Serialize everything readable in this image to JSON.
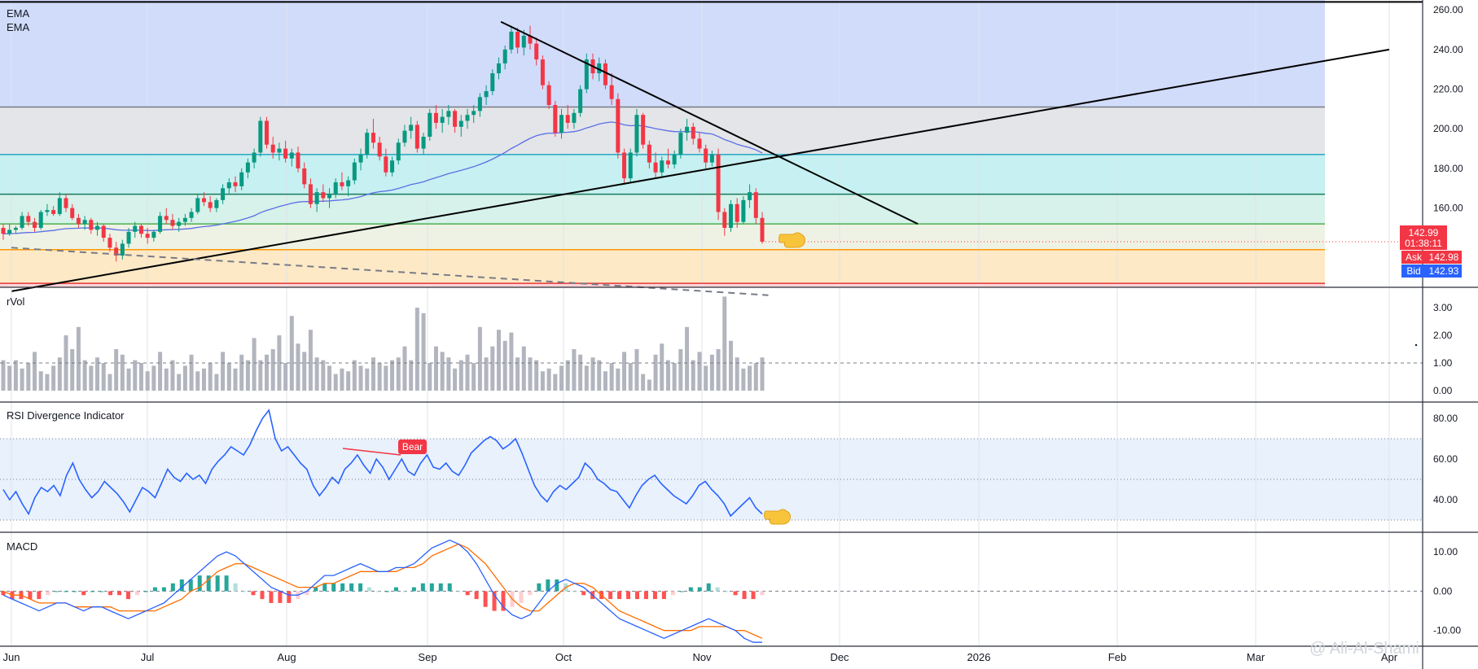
{
  "chart_data": {
    "type": "candlestick",
    "x_months": [
      "Jun",
      "Jul",
      "Aug",
      "Sep",
      "Oct",
      "Nov",
      "Dec",
      "2026",
      "Feb",
      "Mar",
      "Apr"
    ],
    "price_pane": {
      "indicator_labels": [
        "EMA",
        "EMA"
      ],
      "y_ticks": [
        "260.00",
        "240.00",
        "220.00",
        "200.00",
        "180.00",
        "160.00"
      ],
      "ylim": [
        120,
        265
      ],
      "zones": [
        {
          "from": 211,
          "to": 265,
          "color": "#d1dcfb"
        },
        {
          "from": 187,
          "to": 211,
          "color": "#e3e5e8"
        },
        {
          "from": 167,
          "to": 187,
          "color": "#c6f0f1"
        },
        {
          "from": 152,
          "to": 167,
          "color": "#d6f2ea"
        },
        {
          "from": 139,
          "to": 152,
          "color": "#eef2e4"
        },
        {
          "from": 122,
          "to": 139,
          "color": "#fde9c6"
        },
        {
          "from": 116,
          "to": 122,
          "color": "#fbd3d8"
        }
      ],
      "horizontal_levels": [
        {
          "value": 264,
          "color": "#000000"
        },
        {
          "value": 211,
          "color": "#787b86"
        },
        {
          "value": 187,
          "color": "#26a6c7"
        },
        {
          "value": 167,
          "color": "#1b7a5a"
        },
        {
          "value": 152,
          "color": "#4caf50"
        },
        {
          "value": 139,
          "color": "#ff9800"
        },
        {
          "value": 122,
          "color": "#e53935"
        }
      ],
      "trendlines": [
        {
          "from": [
            "2025-06-01",
            118
          ],
          "to": [
            "2026-04-01",
            240
          ],
          "style": "solid"
        },
        {
          "from": [
            "2025-09-17",
            254
          ],
          "to": [
            "2025-12-18",
            152
          ],
          "style": "solid"
        },
        {
          "from": [
            "2025-06-01",
            140
          ],
          "to": [
            "2025-11-15",
            116
          ],
          "style": "dashed"
        }
      ],
      "candles": [
        [
          150,
          152,
          144,
          147
        ],
        [
          147,
          152,
          146,
          149
        ],
        [
          149,
          151,
          147,
          150
        ],
        [
          150,
          158,
          149,
          156
        ],
        [
          156,
          158,
          151,
          153
        ],
        [
          153,
          155,
          148,
          150
        ],
        [
          150,
          159,
          149,
          158
        ],
        [
          158,
          162,
          156,
          159
        ],
        [
          159,
          161,
          156,
          157
        ],
        [
          157,
          168,
          156,
          165
        ],
        [
          165,
          167,
          158,
          160
        ],
        [
          160,
          162,
          154,
          155
        ],
        [
          155,
          157,
          150,
          152
        ],
        [
          152,
          156,
          149,
          154
        ],
        [
          154,
          155,
          147,
          149
        ],
        [
          149,
          153,
          146,
          151
        ],
        [
          151,
          152,
          143,
          145
        ],
        [
          145,
          147,
          138,
          140
        ],
        [
          140,
          143,
          133,
          136
        ],
        [
          136,
          144,
          134,
          142
        ],
        [
          142,
          150,
          140,
          148
        ],
        [
          148,
          153,
          145,
          151
        ],
        [
          151,
          152,
          145,
          147
        ],
        [
          147,
          150,
          142,
          145
        ],
        [
          145,
          149,
          143,
          148
        ],
        [
          148,
          158,
          147,
          156
        ],
        [
          156,
          160,
          152,
          154
        ],
        [
          154,
          157,
          149,
          151
        ],
        [
          151,
          155,
          148,
          153
        ],
        [
          153,
          157,
          151,
          155
        ],
        [
          155,
          160,
          153,
          158
        ],
        [
          158,
          167,
          157,
          165
        ],
        [
          165,
          168,
          161,
          163
        ],
        [
          163,
          166,
          158,
          160
        ],
        [
          160,
          165,
          158,
          164
        ],
        [
          164,
          172,
          162,
          170
        ],
        [
          170,
          175,
          167,
          173
        ],
        [
          173,
          176,
          168,
          171
        ],
        [
          171,
          180,
          169,
          178
        ],
        [
          178,
          185,
          175,
          183
        ],
        [
          183,
          190,
          180,
          188
        ],
        [
          188,
          206,
          186,
          204
        ],
        [
          204,
          206,
          190,
          192
        ],
        [
          192,
          196,
          185,
          188
        ],
        [
          188,
          193,
          184,
          190
        ],
        [
          190,
          194,
          183,
          185
        ],
        [
          185,
          190,
          181,
          188
        ],
        [
          188,
          191,
          178,
          180
        ],
        [
          180,
          183,
          170,
          172
        ],
        [
          172,
          175,
          160,
          162
        ],
        [
          162,
          170,
          158,
          168
        ],
        [
          168,
          172,
          163,
          165
        ],
        [
          165,
          170,
          160,
          167
        ],
        [
          167,
          175,
          165,
          173
        ],
        [
          173,
          178,
          169,
          171
        ],
        [
          171,
          176,
          166,
          174
        ],
        [
          174,
          185,
          172,
          183
        ],
        [
          183,
          190,
          179,
          187
        ],
        [
          187,
          200,
          185,
          198
        ],
        [
          198,
          205,
          190,
          193
        ],
        [
          193,
          196,
          184,
          186
        ],
        [
          186,
          190,
          176,
          178
        ],
        [
          178,
          186,
          176,
          184
        ],
        [
          184,
          195,
          182,
          193
        ],
        [
          193,
          202,
          191,
          199
        ],
        [
          199,
          206,
          195,
          202
        ],
        [
          202,
          204,
          188,
          190
        ],
        [
          190,
          198,
          187,
          196
        ],
        [
          196,
          210,
          194,
          208
        ],
        [
          208,
          212,
          200,
          203
        ],
        [
          203,
          210,
          198,
          206
        ],
        [
          206,
          212,
          202,
          209
        ],
        [
          209,
          210,
          198,
          201
        ],
        [
          201,
          207,
          196,
          204
        ],
        [
          204,
          210,
          200,
          207
        ],
        [
          207,
          212,
          203,
          209
        ],
        [
          209,
          218,
          206,
          216
        ],
        [
          216,
          222,
          212,
          219
        ],
        [
          219,
          230,
          217,
          228
        ],
        [
          228,
          236,
          225,
          233
        ],
        [
          233,
          242,
          230,
          240
        ],
        [
          240,
          252,
          238,
          249
        ],
        [
          249,
          251,
          238,
          241
        ],
        [
          241,
          250,
          237,
          247
        ],
        [
          247,
          252,
          240,
          243
        ],
        [
          243,
          246,
          232,
          235
        ],
        [
          235,
          237,
          220,
          222
        ],
        [
          222,
          224,
          210,
          212
        ],
        [
          212,
          214,
          196,
          198
        ],
        [
          198,
          210,
          195,
          207
        ],
        [
          207,
          212,
          200,
          203
        ],
        [
          203,
          210,
          200,
          208
        ],
        [
          208,
          222,
          206,
          220
        ],
        [
          220,
          238,
          218,
          235
        ],
        [
          235,
          238,
          225,
          228
        ],
        [
          228,
          236,
          224,
          233
        ],
        [
          233,
          235,
          220,
          222
        ],
        [
          222,
          228,
          212,
          215
        ],
        [
          215,
          218,
          185,
          188
        ],
        [
          188,
          190,
          172,
          175
        ],
        [
          175,
          190,
          173,
          188
        ],
        [
          188,
          210,
          186,
          207
        ],
        [
          207,
          208,
          190,
          192
        ],
        [
          192,
          194,
          180,
          183
        ],
        [
          183,
          188,
          175,
          178
        ],
        [
          178,
          186,
          176,
          184
        ],
        [
          184,
          190,
          180,
          182
        ],
        [
          182,
          189,
          180,
          187
        ],
        [
          187,
          200,
          185,
          198
        ],
        [
          198,
          205,
          194,
          201
        ],
        [
          201,
          203,
          192,
          195
        ],
        [
          195,
          198,
          188,
          190
        ],
        [
          190,
          192,
          180,
          183
        ],
        [
          183,
          189,
          181,
          187
        ],
        [
          187,
          190,
          154,
          158
        ],
        [
          158,
          160,
          146,
          150
        ],
        [
          150,
          164,
          148,
          162
        ],
        [
          162,
          165,
          150,
          153
        ],
        [
          153,
          166,
          152,
          164
        ],
        [
          164,
          172,
          160,
          168
        ],
        [
          168,
          170,
          152,
          155
        ],
        [
          155,
          158,
          142,
          143
        ]
      ],
      "price_labels": {
        "last": "142.99",
        "countdown": "01:38:11",
        "ask_label": "Ask",
        "ask": "142.98",
        "bid_label": "Bid",
        "bid": "142.93"
      }
    },
    "rvol_pane": {
      "label": "rVol",
      "y_ticks": [
        "3.00",
        "2.00",
        "1.00",
        "0.00"
      ],
      "ylim": [
        0,
        3.5
      ],
      "reference_level": 1.0,
      "values": [
        1.1,
        0.9,
        1.1,
        0.8,
        1.0,
        1.4,
        0.7,
        0.6,
        0.9,
        1.2,
        2.0,
        1.5,
        2.3,
        1.1,
        0.9,
        1.2,
        1.0,
        0.6,
        1.5,
        1.3,
        0.8,
        1.1,
        1.0,
        0.7,
        0.9,
        1.4,
        0.8,
        1.1,
        0.6,
        0.9,
        1.3,
        0.7,
        0.8,
        1.0,
        0.6,
        1.4,
        1.0,
        0.8,
        1.3,
        1.1,
        1.9,
        1.1,
        1.3,
        1.5,
        2.0,
        1.0,
        2.7,
        1.7,
        1.4,
        2.2,
        1.2,
        1.1,
        0.9,
        0.6,
        0.8,
        0.7,
        1.1,
        0.9,
        0.8,
        1.2,
        1.0,
        0.9,
        1.1,
        1.2,
        1.6,
        1.1,
        3.0,
        2.8,
        1.0,
        1.6,
        1.4,
        1.2,
        0.8,
        1.1,
        1.3,
        1.0,
        2.3,
        1.2,
        1.6,
        2.2,
        1.8,
        2.1,
        1.2,
        1.6,
        1.2,
        1.1,
        0.7,
        0.8,
        0.6,
        0.9,
        1.1,
        1.5,
        1.3,
        0.9,
        1.2,
        1.1,
        0.7,
        1.0,
        0.8,
        1.4,
        1.0,
        1.5,
        0.6,
        0.4,
        1.3,
        1.7,
        1.1,
        1.0,
        1.5,
        2.3,
        1.1,
        1.4,
        0.9,
        1.3,
        1.5,
        3.4,
        1.8,
        1.2,
        0.8,
        0.9,
        1.0,
        1.2
      ]
    },
    "rsi_pane": {
      "label": "RSI Divergence Indicator",
      "y_ticks": [
        "80.00",
        "60.00",
        "40.00"
      ],
      "ylim": [
        24,
        88
      ],
      "band": [
        30,
        70
      ],
      "midline": 50,
      "divergence_label": "Bear",
      "values": [
        45,
        40,
        44,
        38,
        33,
        41,
        46,
        44,
        47,
        42,
        52,
        58,
        50,
        45,
        41,
        44,
        49,
        46,
        43,
        39,
        34,
        40,
        46,
        44,
        41,
        48,
        55,
        51,
        49,
        53,
        50,
        52,
        48,
        55,
        59,
        62,
        66,
        64,
        62,
        67,
        74,
        80,
        84,
        70,
        64,
        66,
        62,
        58,
        55,
        47,
        42,
        46,
        51,
        48,
        55,
        58,
        62,
        57,
        53,
        60,
        56,
        50,
        55,
        60,
        54,
        52,
        58,
        62,
        56,
        55,
        58,
        54,
        52,
        57,
        63,
        66,
        69,
        71,
        69,
        65,
        67,
        70,
        63,
        55,
        47,
        42,
        39,
        44,
        47,
        45,
        48,
        51,
        58,
        55,
        50,
        48,
        45,
        44,
        40,
        36,
        42,
        47,
        50,
        52,
        48,
        45,
        42,
        40,
        38,
        42,
        47,
        49,
        45,
        42,
        38,
        32,
        35,
        38,
        41,
        36,
        33
      ]
    },
    "macd_pane": {
      "label": "MACD",
      "y_ticks": [
        "10.00",
        "0.00",
        "-10.00"
      ],
      "ylim": [
        -14,
        15
      ],
      "macd": [
        -1,
        -2,
        -3,
        -4,
        -5,
        -4,
        -3,
        -3,
        -4,
        -5,
        -4,
        -4,
        -5,
        -6,
        -7,
        -6,
        -5,
        -4,
        -3,
        -1,
        1,
        3,
        5,
        7,
        9,
        10,
        9,
        7,
        5,
        3,
        1,
        0,
        -1,
        -1,
        0,
        2,
        4,
        4,
        5,
        6,
        7,
        6,
        5,
        5,
        6,
        6,
        7,
        9,
        11,
        12,
        13,
        12,
        10,
        7,
        3,
        -1,
        -4,
        -6,
        -7,
        -6,
        -3,
        0,
        2,
        3,
        2,
        1,
        -1,
        -3,
        -5,
        -7,
        -8,
        -9,
        -10,
        -11,
        -12,
        -11,
        -10,
        -9,
        -8,
        -7,
        -8,
        -9,
        -10,
        -12,
        -13,
        -13
      ],
      "signal": [
        0,
        -1,
        -1,
        -2,
        -3,
        -3,
        -3,
        -3,
        -4,
        -4,
        -4,
        -4,
        -4,
        -5,
        -5,
        -5,
        -5,
        -5,
        -4,
        -3,
        -2,
        0,
        1,
        3,
        5,
        6,
        7,
        7,
        6,
        5,
        4,
        3,
        2,
        1,
        1,
        1,
        2,
        2,
        3,
        4,
        5,
        5,
        5,
        5,
        5,
        6,
        6,
        7,
        9,
        10,
        11,
        12,
        11,
        9,
        7,
        4,
        1,
        -2,
        -4,
        -5,
        -5,
        -3,
        -1,
        1,
        2,
        2,
        1,
        -1,
        -3,
        -5,
        -6,
        -7,
        -8,
        -9,
        -10,
        -10,
        -10,
        -10,
        -9,
        -9,
        -9,
        -9,
        -10,
        -10,
        -11,
        -12
      ],
      "histogram": [
        -1,
        -2,
        -2,
        -2,
        -2,
        -1,
        0,
        0,
        0,
        -1,
        0,
        0,
        -1,
        -1,
        -2,
        -1,
        0,
        1,
        1,
        2,
        3,
        3,
        4,
        4,
        4,
        4,
        2,
        0,
        -1,
        -2,
        -3,
        -3,
        -3,
        -2,
        -1,
        1,
        2,
        2,
        2,
        2,
        2,
        1,
        0,
        0,
        1,
        0,
        1,
        2,
        2,
        2,
        2,
        0,
        -1,
        -2,
        -4,
        -5,
        -5,
        -4,
        -3,
        -1,
        2,
        3,
        3,
        2,
        0,
        -1,
        -2,
        -2,
        -2,
        -2,
        -2,
        -2,
        -2,
        -2,
        -2,
        -1,
        0,
        1,
        1,
        2,
        1,
        0,
        -1,
        -2,
        -2,
        -1
      ]
    },
    "watermark": "@ Ali-Al-Shami"
  }
}
